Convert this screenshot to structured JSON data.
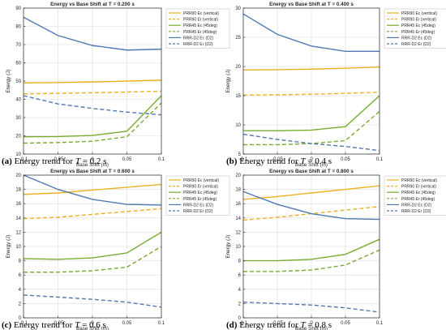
{
  "palette": {
    "orange": "#edb120",
    "green": "#77ac30",
    "blue": "#4f79b5",
    "grid": "#dcdcdc",
    "axis": "#262626"
  },
  "chart_data": [
    {
      "type": "line",
      "title": "Energy vs Base Shift at T = 0.200 s",
      "xlabel": "Base Shift (m)",
      "ylabel": "Energy (J)",
      "xlim": [
        -0.1,
        0.1
      ],
      "ylim": [
        10,
        90
      ],
      "xticks": [
        -0.1,
        -0.05,
        0,
        0.05,
        0.1
      ],
      "xtick_labels": [
        "-0.1",
        "-0.05",
        "0",
        "0.05",
        "0.1"
      ],
      "yticks": [
        10,
        20,
        30,
        40,
        50,
        60,
        70,
        80,
        90
      ],
      "ytick_labels": [
        "10",
        "20",
        "30",
        "40",
        "50",
        "60",
        "70",
        "80",
        "90"
      ],
      "grid": true,
      "legend_position": "top-right",
      "x": [
        -0.1,
        -0.05,
        0,
        0.05,
        0.1
      ],
      "series": [
        {
          "name": "PRR90 Ec (vertical)",
          "color": "orange",
          "dash": "solid",
          "values": [
            49,
            49.2,
            49.5,
            50,
            50.5
          ]
        },
        {
          "name": "PRR90 Er (vertical)",
          "color": "orange",
          "dash": "dashed",
          "values": [
            43,
            43.3,
            43.6,
            44,
            44.5
          ]
        },
        {
          "name": "PRR45 Ec (45deg)",
          "color": "green",
          "dash": "solid",
          "values": [
            19.5,
            19.6,
            20.2,
            22.5,
            42
          ]
        },
        {
          "name": "PRR45 Er (45deg)",
          "color": "green",
          "dash": "dashed",
          "values": [
            16,
            16.3,
            17,
            19.5,
            38
          ]
        },
        {
          "name": "RRR-D2 Ec (D2)",
          "color": "blue",
          "dash": "solid",
          "values": [
            85,
            75,
            69.5,
            67,
            67.5
          ]
        },
        {
          "name": "RRR-D2 Er (D2)",
          "color": "blue",
          "dash": "dashed",
          "values": [
            42,
            37.5,
            35,
            33,
            31.5
          ]
        }
      ],
      "caption_label": "(a)",
      "caption_text": " Energy trend for ",
      "caption_var": "T",
      "caption_value": " = 0.2 s"
    },
    {
      "type": "line",
      "title": "Energy vs Base Shift at T = 0.400 s",
      "xlabel": "Base Shift (m)",
      "ylabel": "Energy (J)",
      "xlim": [
        -0.1,
        0.1
      ],
      "ylim": [
        5,
        30
      ],
      "xticks": [
        -0.1,
        -0.05,
        0,
        0.05,
        0.1
      ],
      "xtick_labels": [
        "-0.1",
        "-0.05",
        "0",
        "0.05",
        "0.1"
      ],
      "yticks": [
        5,
        10,
        15,
        20,
        25,
        30
      ],
      "ytick_labels": [
        "5",
        "10",
        "15",
        "20",
        "25",
        "30"
      ],
      "grid": true,
      "legend_position": "top-right",
      "x": [
        -0.1,
        -0.05,
        0,
        0.05,
        0.1
      ],
      "series": [
        {
          "name": "PRR90 Ec (vertical)",
          "color": "orange",
          "dash": "solid",
          "values": [
            19.4,
            19.45,
            19.55,
            19.7,
            19.9
          ]
        },
        {
          "name": "PRR90 Er (vertical)",
          "color": "orange",
          "dash": "dashed",
          "values": [
            15.1,
            15.15,
            15.25,
            15.4,
            15.6
          ]
        },
        {
          "name": "PRR45 Ec (45deg)",
          "color": "green",
          "dash": "solid",
          "values": [
            9,
            9,
            9.1,
            9.7,
            15
          ]
        },
        {
          "name": "PRR45 Er (45deg)",
          "color": "green",
          "dash": "dashed",
          "values": [
            6.6,
            6.6,
            6.8,
            7.3,
            12.3
          ]
        },
        {
          "name": "RRR-D2 Ec (D2)",
          "color": "blue",
          "dash": "solid",
          "values": [
            29,
            25.5,
            23.5,
            22.6,
            22.6
          ]
        },
        {
          "name": "RRR-D2 Er (D2)",
          "color": "blue",
          "dash": "dashed",
          "values": [
            8.4,
            7.5,
            6.8,
            6.3,
            5.6
          ]
        }
      ],
      "caption_label": "(b)",
      "caption_text": " Energy trend for ",
      "caption_var": "T",
      "caption_value": " = 0.4 s"
    },
    {
      "type": "line",
      "title": "Energy vs Base Shift at T = 0.600 s",
      "xlabel": "Base Shift (m)",
      "ylabel": "Energy (J)",
      "xlim": [
        -0.1,
        0.1
      ],
      "ylim": [
        0,
        20
      ],
      "xticks": [
        -0.1,
        -0.05,
        0,
        0.05,
        0.1
      ],
      "xtick_labels": [
        "-0.1",
        "-0.05",
        "0",
        "0.05",
        "0.1"
      ],
      "yticks": [
        0,
        2,
        4,
        6,
        8,
        10,
        12,
        14,
        16,
        18,
        20
      ],
      "ytick_labels": [
        "0",
        "2",
        "4",
        "6",
        "8",
        "10",
        "12",
        "14",
        "16",
        "18",
        "20"
      ],
      "grid": true,
      "legend_position": "top-right",
      "x": [
        -0.1,
        -0.05,
        0,
        0.05,
        0.1
      ],
      "series": [
        {
          "name": "PRR90 Ec (vertical)",
          "color": "orange",
          "dash": "solid",
          "values": [
            17.3,
            17.5,
            17.9,
            18.3,
            18.7
          ]
        },
        {
          "name": "PRR90 Er (vertical)",
          "color": "orange",
          "dash": "dashed",
          "values": [
            13.9,
            14.1,
            14.5,
            14.9,
            15.3
          ]
        },
        {
          "name": "PRR45 Ec (45deg)",
          "color": "green",
          "dash": "solid",
          "values": [
            8.3,
            8.2,
            8.4,
            9.1,
            12
          ]
        },
        {
          "name": "PRR45 Er (45deg)",
          "color": "green",
          "dash": "dashed",
          "values": [
            6.4,
            6.4,
            6.6,
            7.1,
            10
          ]
        },
        {
          "name": "RRR-D2 Ec (D2)",
          "color": "blue",
          "dash": "solid",
          "values": [
            20,
            18,
            16.6,
            15.9,
            15.8
          ]
        },
        {
          "name": "RRR-D2 Er (D2)",
          "color": "blue",
          "dash": "dashed",
          "values": [
            3.2,
            2.9,
            2.6,
            2.2,
            1.5
          ]
        }
      ],
      "caption_label": "(c)",
      "caption_text": " Energy trend for ",
      "caption_var": "T",
      "caption_value": " = 0.6 s"
    },
    {
      "type": "line",
      "title": "Energy vs Base Shift at T = 0.800 s",
      "xlabel": "Base Shift (m)",
      "ylabel": "Energy (J)",
      "xlim": [
        -0.1,
        0.1
      ],
      "ylim": [
        0,
        20
      ],
      "xticks": [
        -0.1,
        -0.05,
        0,
        0.05,
        0.1
      ],
      "xtick_labels": [
        "-0.1",
        "-0.05",
        "0",
        "0.05",
        "0.1"
      ],
      "yticks": [
        0,
        2,
        4,
        6,
        8,
        10,
        12,
        14,
        16,
        18,
        20
      ],
      "ytick_labels": [
        "0",
        "2",
        "4",
        "6",
        "8",
        "10",
        "12",
        "14",
        "16",
        "18",
        "20"
      ],
      "grid": true,
      "legend_position": "top-right",
      "x": [
        -0.1,
        -0.05,
        0,
        0.05,
        0.1
      ],
      "series": [
        {
          "name": "PRR90 Ec (vertical)",
          "color": "orange",
          "dash": "solid",
          "values": [
            16.6,
            17,
            17.5,
            18,
            18.5
          ]
        },
        {
          "name": "PRR90 Er (vertical)",
          "color": "orange",
          "dash": "dashed",
          "values": [
            13.7,
            14.1,
            14.6,
            15.1,
            15.6
          ]
        },
        {
          "name": "PRR45 Ec (45deg)",
          "color": "green",
          "dash": "solid",
          "values": [
            8,
            8,
            8.2,
            8.9,
            11
          ]
        },
        {
          "name": "PRR45 Er (45deg)",
          "color": "green",
          "dash": "dashed",
          "values": [
            6.5,
            6.5,
            6.7,
            7.4,
            9.5
          ]
        },
        {
          "name": "RRR-D2 Ec (D2)",
          "color": "blue",
          "dash": "solid",
          "values": [
            17.7,
            15.9,
            14.6,
            13.9,
            13.8
          ]
        },
        {
          "name": "RRR-D2 Er (D2)",
          "color": "blue",
          "dash": "dashed",
          "values": [
            2.2,
            2.0,
            1.8,
            1.4,
            0.8
          ]
        }
      ],
      "caption_label": "(d)",
      "caption_text": " Energy trend for ",
      "caption_var": "T",
      "caption_value": " = 0.8 s"
    }
  ]
}
